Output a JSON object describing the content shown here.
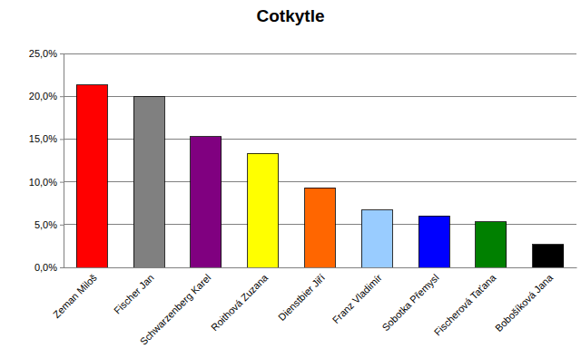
{
  "chart_data": {
    "type": "bar",
    "title": "Cotkytle",
    "categories": [
      "Zeman Miloš",
      "Fischer Jan",
      "Schwarzenberg Karel",
      "Roithová Zuzana",
      "Dienstbier Jiří",
      "Franz Vladimír",
      "Sobotka Přemysl",
      "Fischerová Taťana",
      "Bobošíková Jana"
    ],
    "values": [
      21.3,
      20.0,
      15.3,
      13.3,
      9.3,
      6.7,
      6.0,
      5.3,
      2.7
    ],
    "colors": [
      "#ff0000",
      "#808080",
      "#800080",
      "#ffff00",
      "#ff6600",
      "#99ccff",
      "#0000ff",
      "#008000",
      "#000000"
    ],
    "ylim": [
      0,
      25
    ],
    "yticks": [
      {
        "value": 0,
        "label": "0,0%"
      },
      {
        "value": 5,
        "label": "5,0%"
      },
      {
        "value": 10,
        "label": "10,0%"
      },
      {
        "value": 15,
        "label": "15,0%"
      },
      {
        "value": 20,
        "label": "20,0%"
      },
      {
        "value": 25,
        "label": "25,0%"
      }
    ],
    "grid": true
  }
}
